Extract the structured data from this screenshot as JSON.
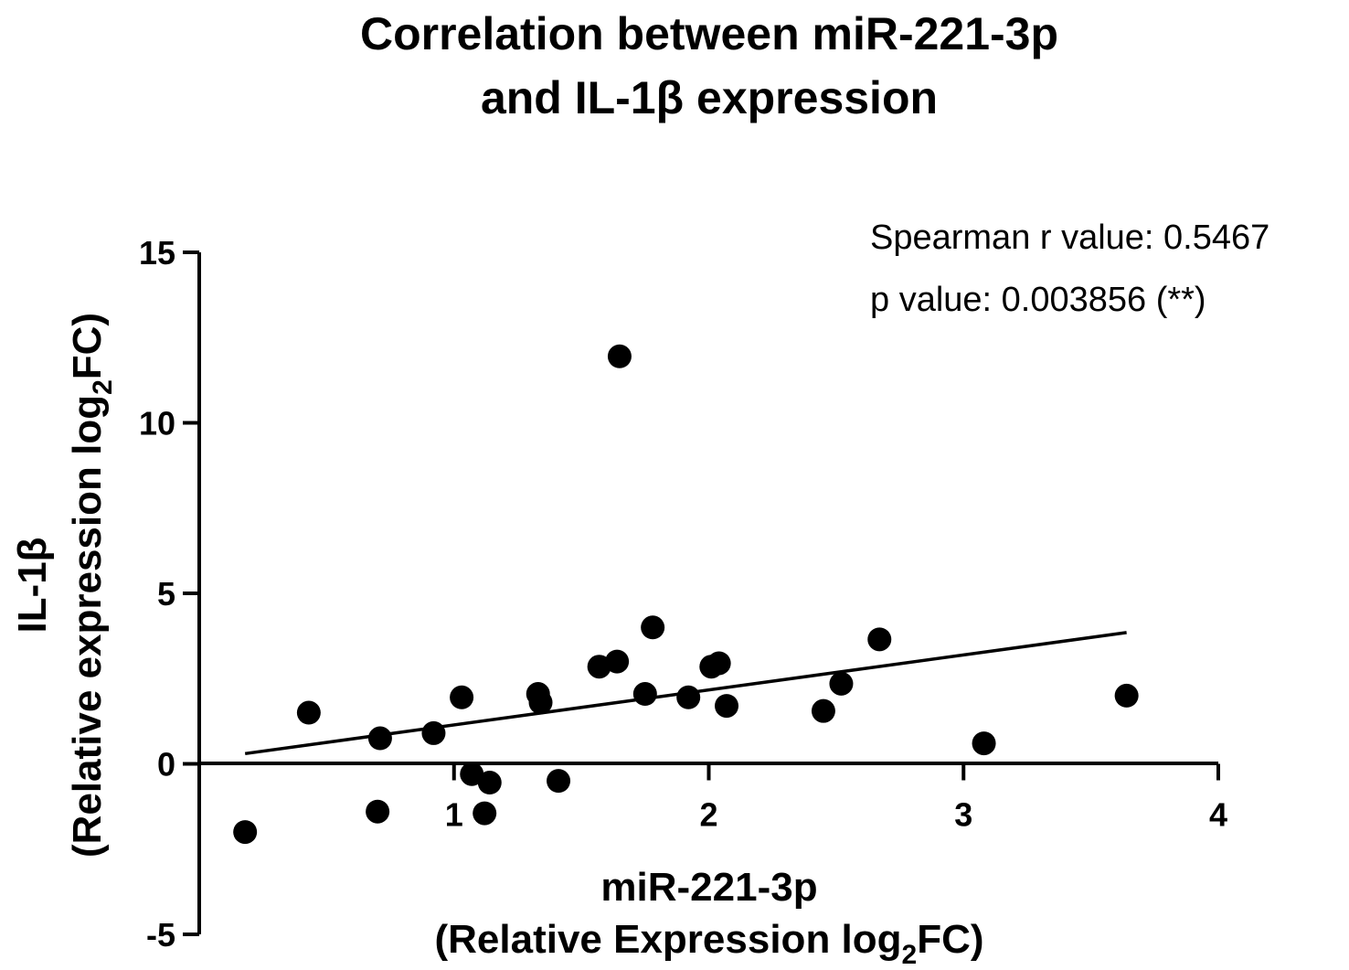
{
  "chart_data": {
    "type": "scatter",
    "title_line1": "Correlation between miR-221-3p",
    "title_line2": "and IL-1β expression",
    "xlabel_line1": "miR-221-3p",
    "xlabel_line2_pre": "(Relative Expression log",
    "xlabel_line2_sub": "2",
    "xlabel_line2_post": "FC)",
    "ylabel_line1": "IL-1β",
    "ylabel_line2_pre": "(Relative expression log",
    "ylabel_line2_sub": "2",
    "ylabel_line2_post": "FC)",
    "xlim": [
      0,
      4
    ],
    "ylim": [
      -5,
      15
    ],
    "x_ticks": [
      1,
      2,
      3,
      4
    ],
    "x_tick_labels": [
      "1",
      "2",
      "3",
      "4"
    ],
    "y_ticks": [
      -5,
      0,
      5,
      10,
      15
    ],
    "y_tick_labels": [
      "-5",
      "0",
      "5",
      "10",
      "15"
    ],
    "points": [
      {
        "x": 0.18,
        "y": -2.0
      },
      {
        "x": 0.43,
        "y": 1.5
      },
      {
        "x": 0.7,
        "y": -1.4
      },
      {
        "x": 0.71,
        "y": 0.75
      },
      {
        "x": 0.92,
        "y": 0.9
      },
      {
        "x": 1.03,
        "y": 1.95
      },
      {
        "x": 1.07,
        "y": -0.3
      },
      {
        "x": 1.12,
        "y": -1.45
      },
      {
        "x": 1.14,
        "y": -0.55
      },
      {
        "x": 1.33,
        "y": 2.05
      },
      {
        "x": 1.34,
        "y": 1.8
      },
      {
        "x": 1.41,
        "y": -0.5
      },
      {
        "x": 1.57,
        "y": 2.85
      },
      {
        "x": 1.64,
        "y": 3.0
      },
      {
        "x": 1.65,
        "y": 11.95
      },
      {
        "x": 1.75,
        "y": 2.05
      },
      {
        "x": 1.78,
        "y": 4.0
      },
      {
        "x": 1.92,
        "y": 1.95
      },
      {
        "x": 2.01,
        "y": 2.85
      },
      {
        "x": 2.04,
        "y": 2.95
      },
      {
        "x": 2.07,
        "y": 1.7
      },
      {
        "x": 2.45,
        "y": 1.55
      },
      {
        "x": 2.52,
        "y": 2.35
      },
      {
        "x": 2.67,
        "y": 3.65
      },
      {
        "x": 3.08,
        "y": 0.6
      },
      {
        "x": 3.64,
        "y": 2.0
      }
    ],
    "trendline": {
      "x": [
        0.18,
        3.64
      ],
      "y": [
        0.3,
        3.85
      ]
    },
    "annotations": {
      "spearman": "Spearman r value: 0.5467",
      "pvalue": "p value: 0.003856 (**)"
    }
  }
}
